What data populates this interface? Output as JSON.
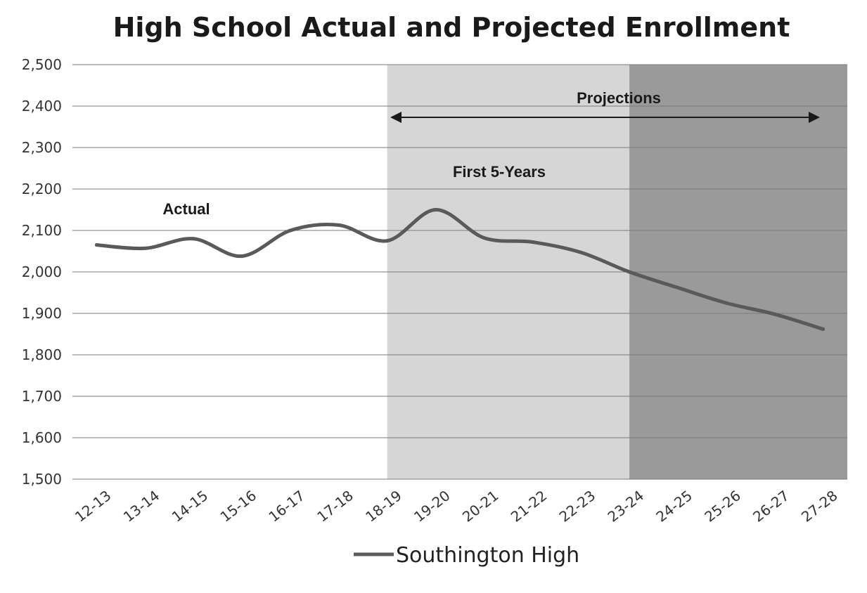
{
  "chart_data": {
    "type": "line",
    "title": "High School Actual and Projected Enrollment",
    "categories": [
      "12-13",
      "13-14",
      "14-15",
      "15-16",
      "16-17",
      "17-18",
      "18-19",
      "19-20",
      "20-21",
      "21-22",
      "22-23",
      "23-24",
      "24-25",
      "25-26",
      "26-27",
      "27-28"
    ],
    "series": [
      {
        "name": "Southington High",
        "values": [
          2065,
          2057,
          2080,
          2038,
          2100,
          2113,
          2075,
          2150,
          2082,
          2072,
          2047,
          2000,
          1962,
          1925,
          1898,
          1862
        ],
        "color": "#5a5a5a"
      }
    ],
    "ylim": [
      1500,
      2500
    ],
    "yticks": [
      {
        "value": 2500,
        "label": "2,500"
      },
      {
        "value": 2400,
        "label": "2,400"
      },
      {
        "value": 2300,
        "label": "2,300"
      },
      {
        "value": 2200,
        "label": "2,200"
      },
      {
        "value": 2100,
        "label": "2,100"
      },
      {
        "value": 2000,
        "label": "2,000"
      },
      {
        "value": 1900,
        "label": "1,900"
      },
      {
        "value": 1800,
        "label": "1,800"
      },
      {
        "value": 1700,
        "label": "1,700"
      },
      {
        "value": 1600,
        "label": "1,600"
      },
      {
        "value": 1500,
        "label": "1,500"
      }
    ],
    "grid": true,
    "legend_position": "bottom-center",
    "annotations": {
      "actual_label": "Actual",
      "first5_label": "First 5-Years",
      "projections_label": "Projections"
    },
    "shaded_regions": [
      {
        "name": "first-5-years",
        "from": "18-19",
        "to": "23-24",
        "color": "#d6d6d6"
      },
      {
        "name": "later-projections",
        "from": "23-24",
        "to": "27-28",
        "color": "#9a9a9a"
      }
    ]
  }
}
